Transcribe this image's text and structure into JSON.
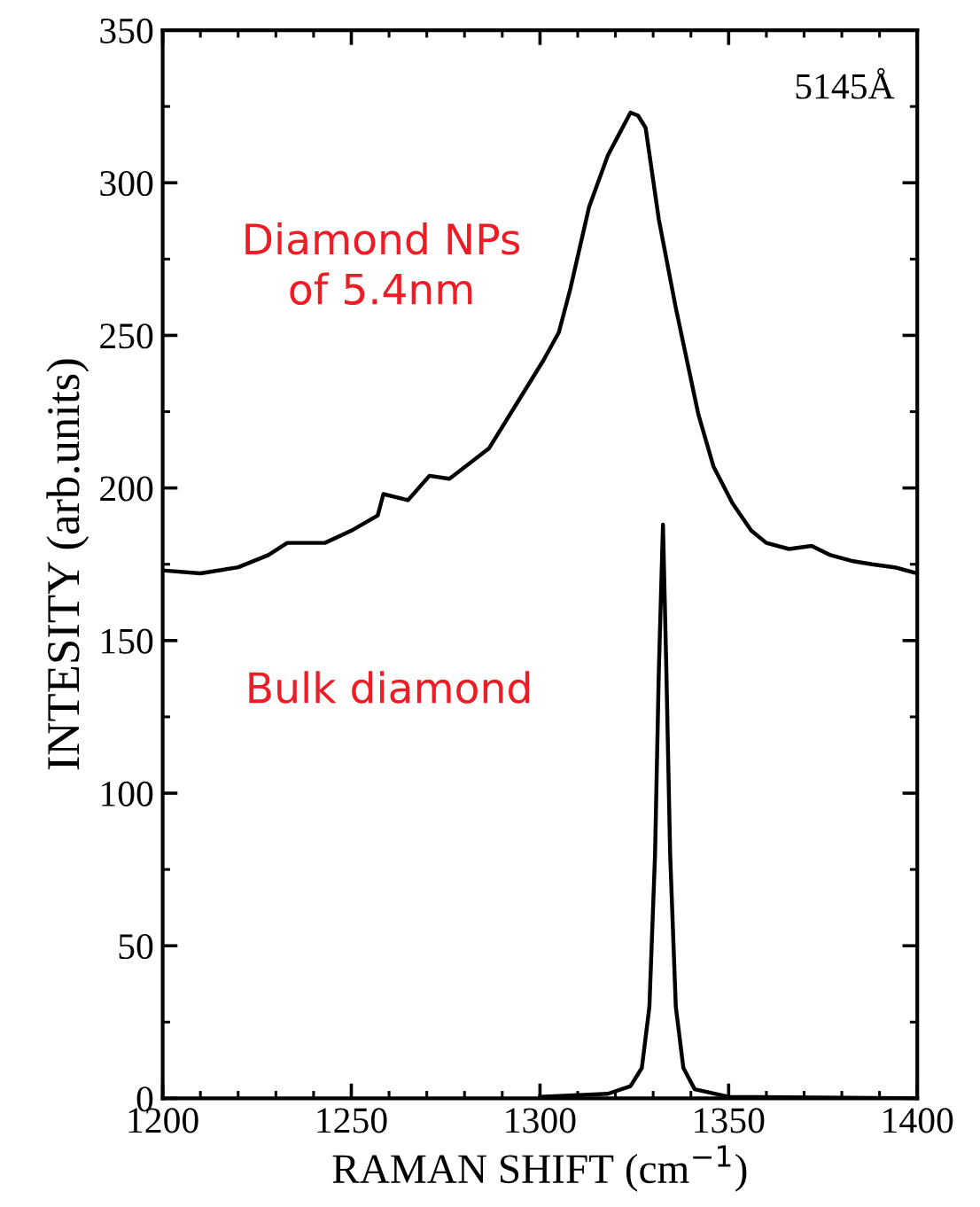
{
  "chart_data": {
    "type": "line",
    "xlabel": "RAMAN SHIFT (cm$^{−1}$)",
    "ylabel": "INTESITY (arb.units)",
    "xlim": [
      1200,
      1400
    ],
    "ylim": [
      0,
      350
    ],
    "xticks": [
      1200,
      1250,
      1300,
      1350,
      1400
    ],
    "yticks": [
      0,
      50,
      100,
      150,
      200,
      250,
      300,
      350
    ],
    "grid": false,
    "legend": false,
    "series": [
      {
        "color": "#000000",
        "x": [
          1200,
          1210,
          1220,
          1228,
          1233,
          1243,
          1250,
          1257,
          1258.5,
          1265,
          1270.7,
          1276,
          1286.5,
          1294,
          1301,
          1305,
          1308,
          1313,
          1318,
          1321,
          1324,
          1326,
          1328,
          1331.5,
          1336,
          1342,
          1346,
          1351,
          1356,
          1360,
          1366,
          1372,
          1377,
          1383,
          1388,
          1394,
          1400
        ],
        "values": [
          173,
          172,
          174,
          178,
          182,
          182,
          186,
          191,
          198,
          196,
          204,
          203,
          213,
          228,
          242,
          251,
          265,
          292,
          309,
          316,
          323,
          322,
          318,
          288,
          259,
          224,
          207,
          195,
          186,
          182,
          180,
          181,
          178,
          176,
          175,
          174,
          172
        ]
      },
      {
        "color": "#000000",
        "x": [
          1300,
          1318,
          1324,
          1327,
          1329,
          1330.5,
          1331.5,
          1332.6,
          1333.5,
          1334.5,
          1336,
          1338,
          1341,
          1350,
          1400
        ],
        "values": [
          0.5,
          1.5,
          4,
          10,
          30,
          80,
          140,
          188,
          140,
          80,
          30,
          10,
          3,
          0.5,
          0
        ]
      }
    ],
    "annotations": [
      "5145Å",
      "Diamond NPs\nof 5.4nm",
      "Bulk diamond"
    ]
  }
}
